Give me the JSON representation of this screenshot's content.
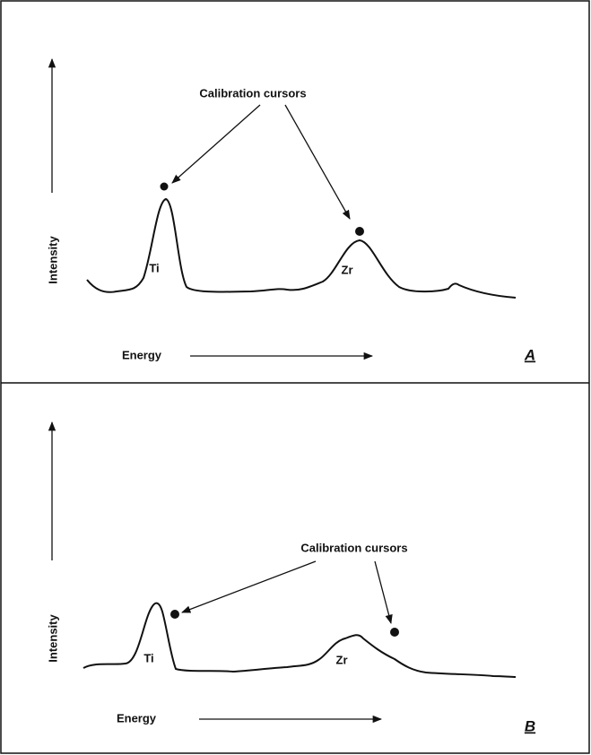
{
  "panels": [
    {
      "label": "A",
      "annotation": "Calibration cursors",
      "peaks": [
        "Ti",
        "Zr"
      ],
      "x_axis_label": "Energy",
      "y_axis_label": "Intensity"
    },
    {
      "label": "B",
      "annotation": "Calibration cursors",
      "peaks": [
        "Ti",
        "Zr"
      ],
      "x_axis_label": "Energy",
      "y_axis_label": "Intensity"
    }
  ]
}
